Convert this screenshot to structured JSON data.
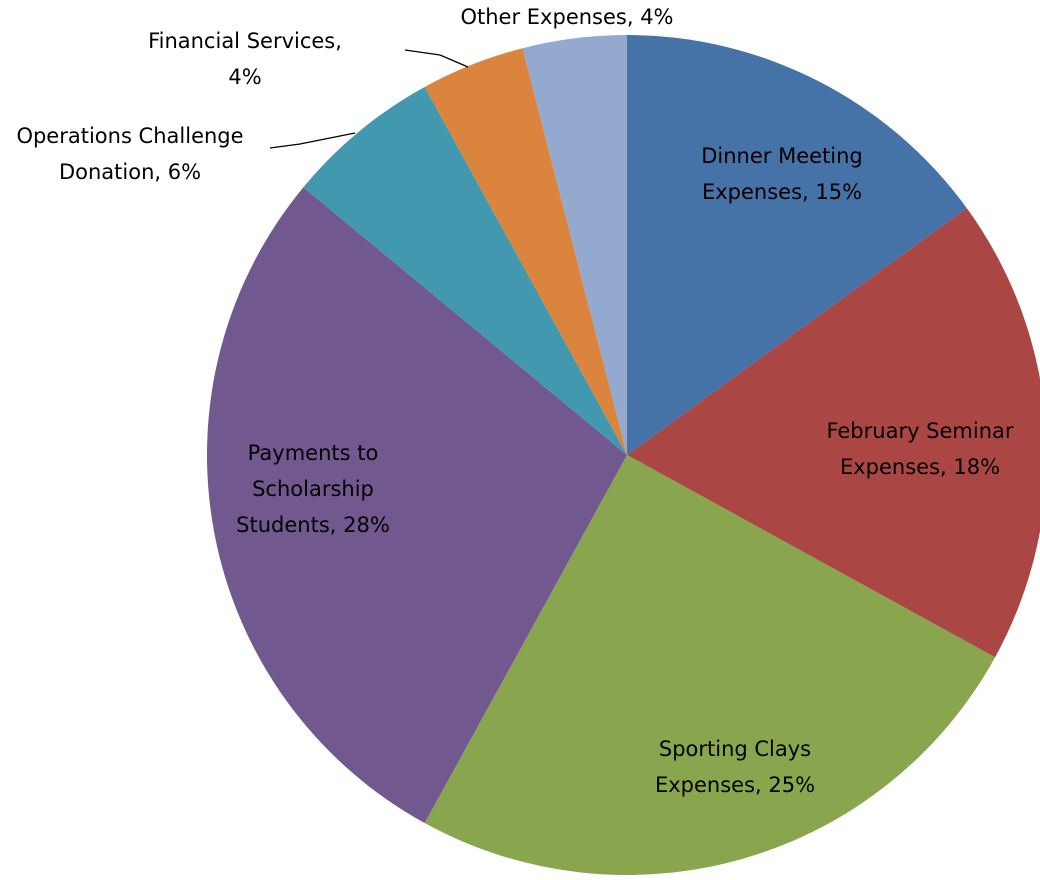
{
  "chart_data": {
    "type": "pie",
    "values": [
      15,
      18,
      25,
      28,
      6,
      4,
      4
    ],
    "value_labels": [
      "Dinner Meeting Expenses, 15%",
      "February Seminar Expenses, 18%",
      "Sporting Clays Expenses, 25%",
      "Payments to Scholarship Students, 28%",
      "Operations Challenge Donation, 6%",
      "Financial Services, 4%",
      "Other Expenses, 4%"
    ],
    "colors": [
      "#4572a7",
      "#aa4643",
      "#89a54e",
      "#71588f",
      "#4198af",
      "#db843d",
      "#93a9cf"
    ]
  }
}
